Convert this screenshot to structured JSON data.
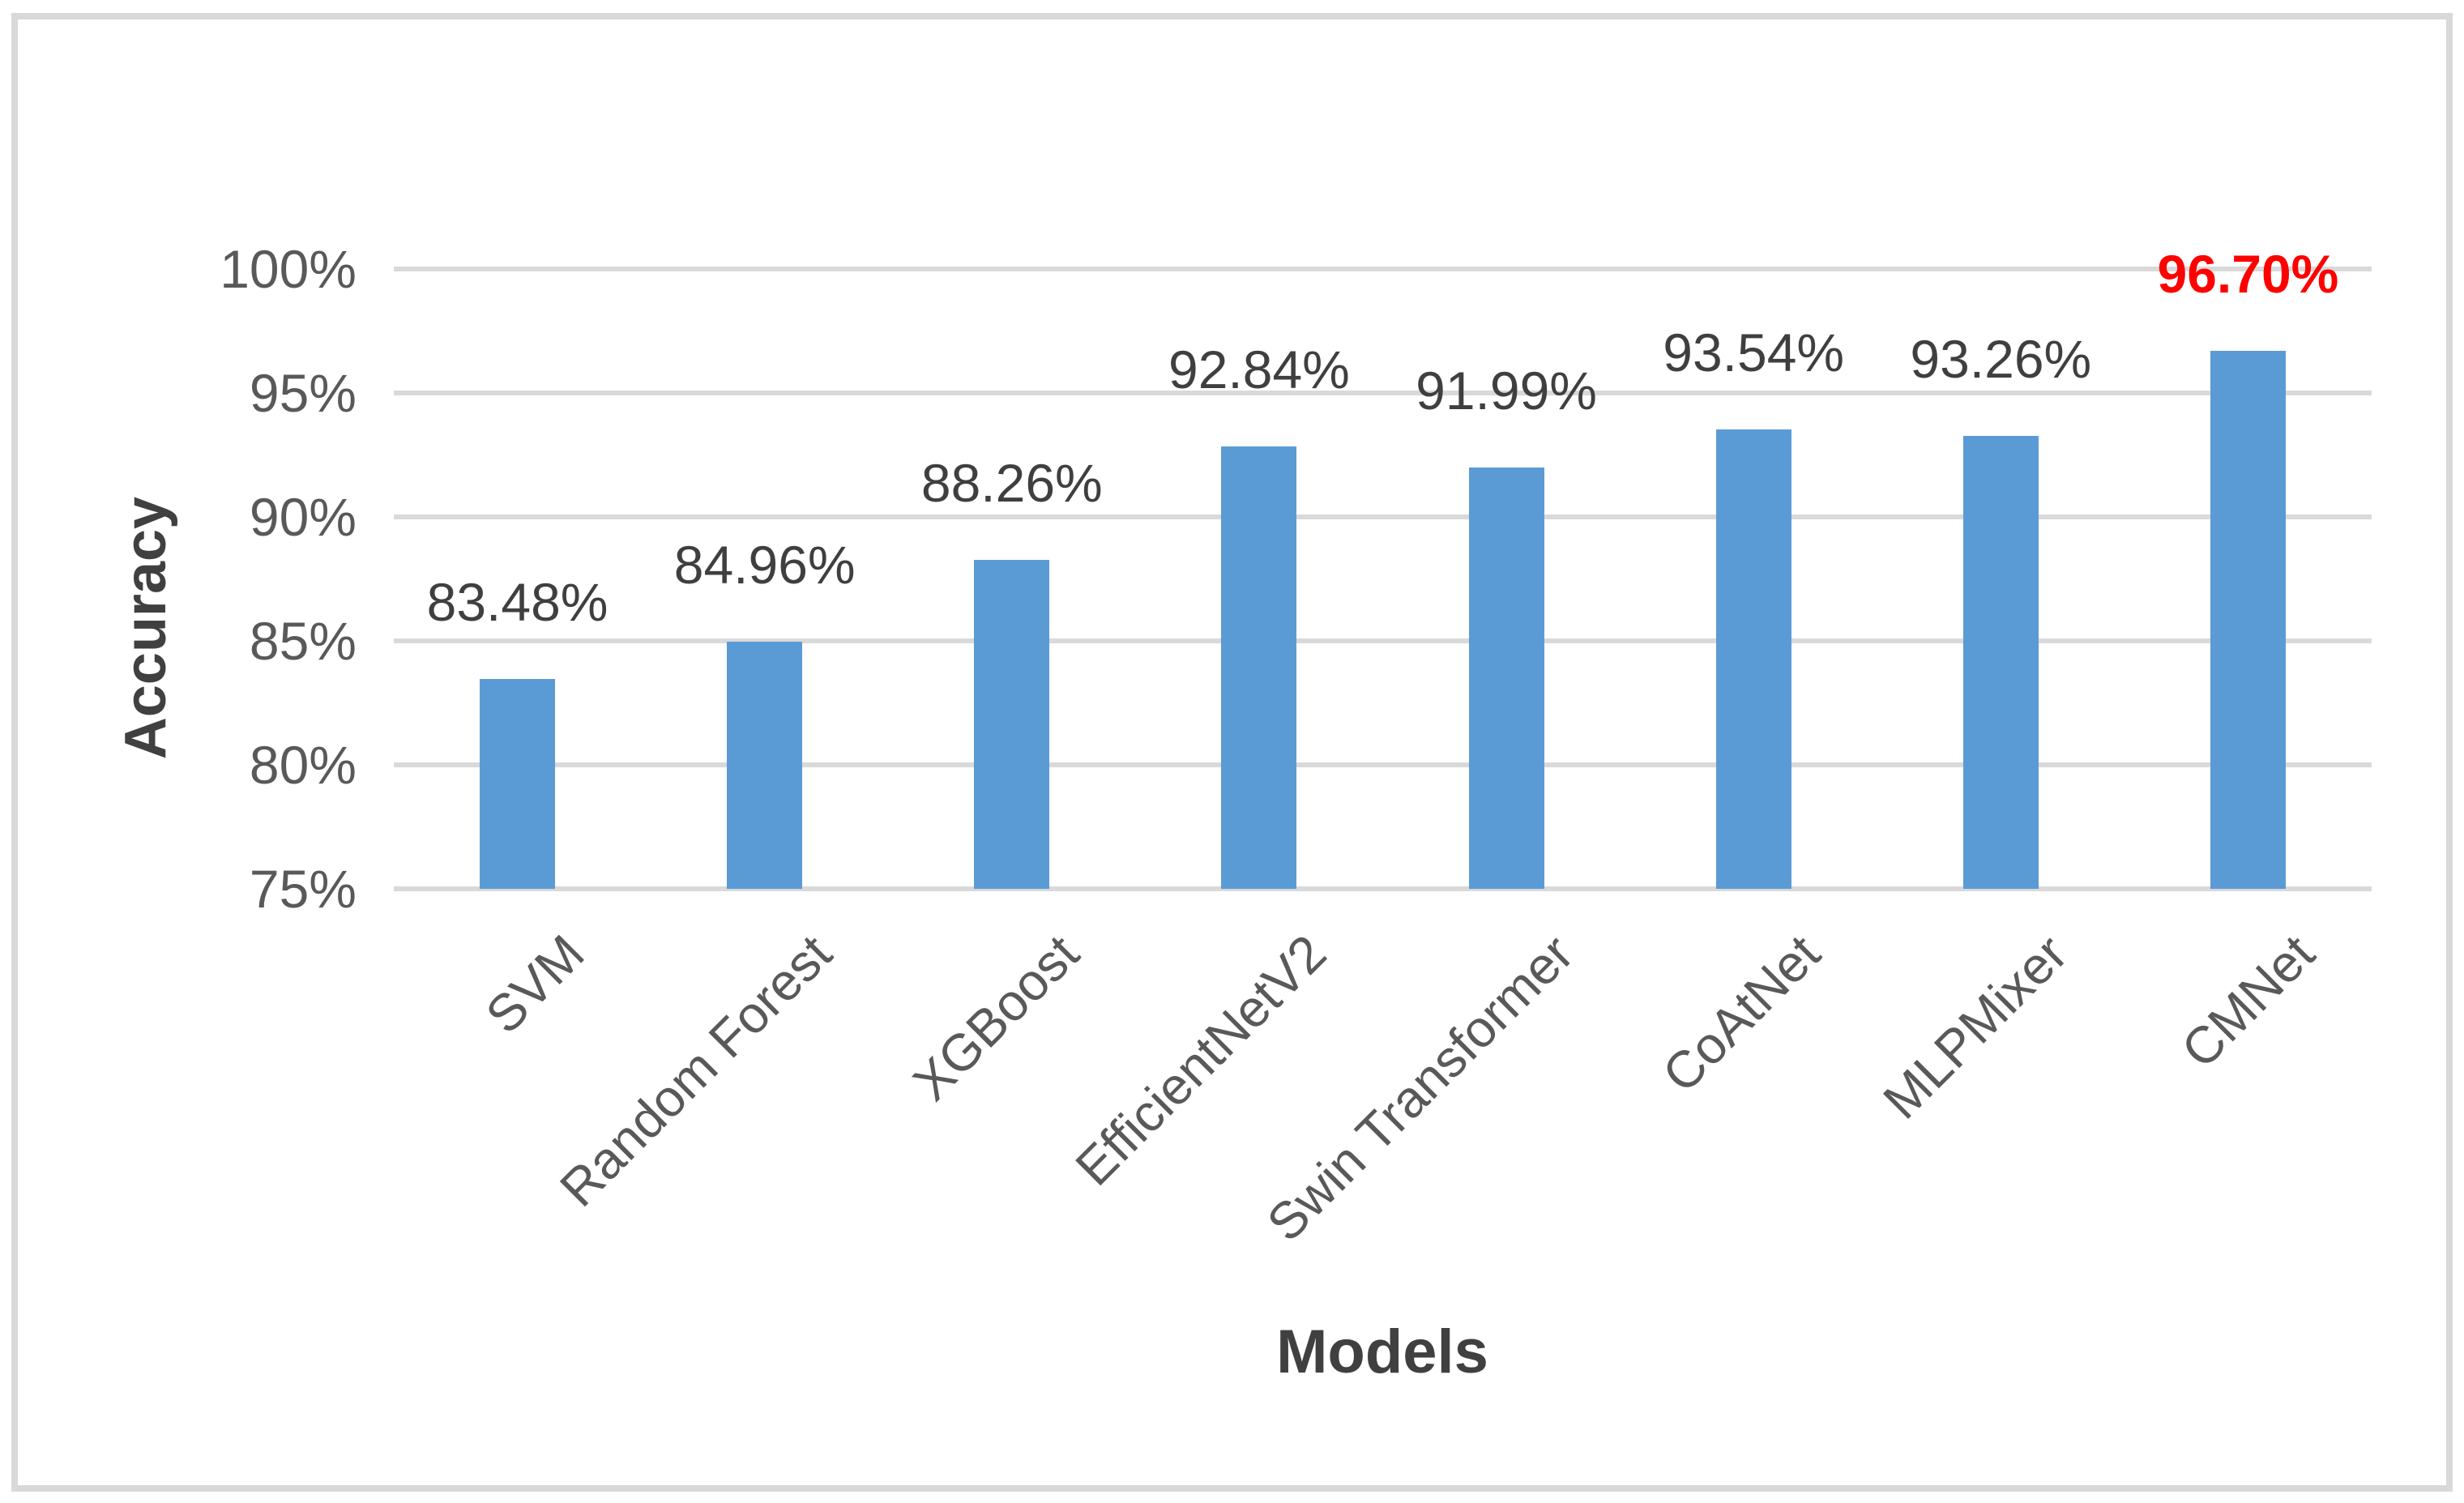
{
  "chart_data": {
    "type": "bar",
    "title": "",
    "xlabel": "Models",
    "ylabel": "Accuracy",
    "categories": [
      "SVM",
      "Random Forest",
      "XGBoost",
      "EfficientNetV2",
      "Swin Transformer",
      "CoAtNet",
      "MLPMixer",
      "CMNet"
    ],
    "values": [
      83.48,
      84.96,
      88.26,
      92.84,
      91.99,
      93.54,
      93.26,
      96.7
    ],
    "data_labels": [
      "83.48%",
      "84.96%",
      "88.26%",
      "92.84%",
      "91.99%",
      "93.54%",
      "93.26%",
      "96.70%"
    ],
    "highlight_index": 7,
    "yticks": [
      {
        "value": 100,
        "label": "100%"
      },
      {
        "value": 95,
        "label": "95%"
      },
      {
        "value": 90,
        "label": "90%"
      },
      {
        "value": 85,
        "label": "85%"
      },
      {
        "value": 80,
        "label": "80%"
      },
      {
        "value": 75,
        "label": "75%"
      }
    ],
    "ylim": [
      75,
      100
    ],
    "grid": true,
    "legend_position": "none",
    "colors": {
      "bar": "#5b9bd5",
      "gridline": "#d9d9d9",
      "frame_border": "#d9d9d9",
      "axis_text": "#595959",
      "data_label_text": "#3f3f3f",
      "highlight_label_text": "#ff0000",
      "axis_title_text": "#404040"
    }
  }
}
